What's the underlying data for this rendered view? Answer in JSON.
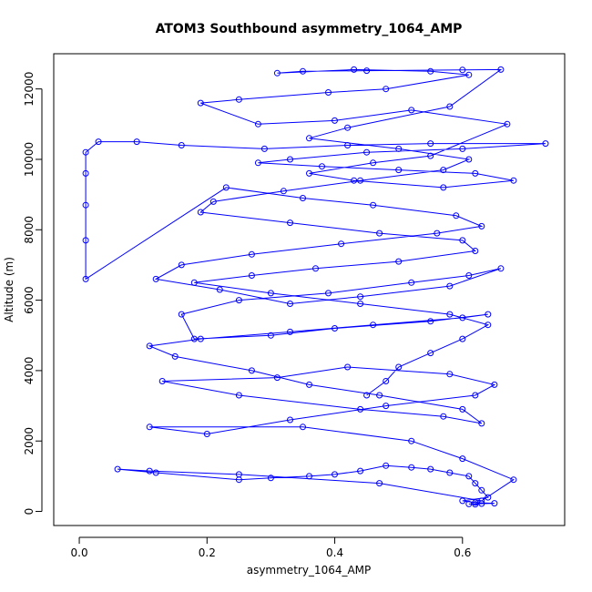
{
  "chart_data": {
    "type": "line",
    "title": "ATOM3 Southbound asymmetry_1064_AMP",
    "xlabel": "asymmetry_1064_AMP",
    "ylabel": "Altitude (m)",
    "xlim": [
      -0.04,
      0.76
    ],
    "ylim": [
      -400,
      13000
    ],
    "x_ticks": [
      "0.0",
      "0.2",
      "0.4",
      "0.6"
    ],
    "x_tick_values": [
      0,
      0.2,
      0.4,
      0.6
    ],
    "y_ticks": [
      "0",
      "2000",
      "4000",
      "6000",
      "8000",
      "10000",
      "12000"
    ],
    "y_tick_values": [
      0,
      2000,
      4000,
      6000,
      8000,
      10000,
      12000
    ],
    "grid": false,
    "series": [
      {
        "color": "#0000ff",
        "marker": "open-circle",
        "x": [
          0.62,
          0.63,
          0.61,
          0.65,
          0.62,
          0.6,
          0.64,
          0.63,
          0.62,
          0.61,
          0.58,
          0.55,
          0.52,
          0.48,
          0.44,
          0.4,
          0.36,
          0.3,
          0.25,
          0.12,
          0.06,
          0.11,
          0.25,
          0.47,
          0.63,
          0.68,
          0.6,
          0.52,
          0.35,
          0.11,
          0.2,
          0.33,
          0.48,
          0.62,
          0.65,
          0.58,
          0.42,
          0.31,
          0.13,
          0.25,
          0.44,
          0.57,
          0.63,
          0.6,
          0.47,
          0.36,
          0.27,
          0.15,
          0.11,
          0.19,
          0.33,
          0.46,
          0.6,
          0.64,
          0.55,
          0.4,
          0.3,
          0.18,
          0.16,
          0.25,
          0.39,
          0.52,
          0.61,
          0.66,
          0.58,
          0.44,
          0.33,
          0.22,
          0.12,
          0.16,
          0.27,
          0.41,
          0.56,
          0.63,
          0.59,
          0.46,
          0.35,
          0.23,
          0.01,
          0.01,
          0.01,
          0.01,
          0.01,
          0.03,
          0.09,
          0.16,
          0.29,
          0.42,
          0.55,
          0.73,
          0.6,
          0.45,
          0.33,
          0.28,
          0.38,
          0.5,
          0.62,
          0.68,
          0.57,
          0.43,
          0.36,
          0.46,
          0.55,
          0.67,
          0.52,
          0.4,
          0.28,
          0.19,
          0.25,
          0.39,
          0.48,
          0.61,
          0.55,
          0.43,
          0.31,
          0.35,
          0.45,
          0.6,
          0.66,
          0.58,
          0.42,
          0.36,
          0.5,
          0.61,
          0.57,
          0.44,
          0.32,
          0.21,
          0.19,
          0.33,
          0.47,
          0.6,
          0.62,
          0.5,
          0.37,
          0.27,
          0.18,
          0.3,
          0.44,
          0.58,
          0.64,
          0.6,
          0.55,
          0.5,
          0.48,
          0.45
        ],
        "y": [
          200,
          220,
          210,
          230,
          250,
          300,
          400,
          600,
          800,
          1000,
          1100,
          1200,
          1250,
          1300,
          1150,
          1050,
          1000,
          950,
          900,
          1100,
          1200,
          1150,
          1050,
          800,
          300,
          900,
          1500,
          2000,
          2400,
          2400,
          2200,
          2600,
          3000,
          3300,
          3600,
          3900,
          4100,
          3800,
          3700,
          3300,
          2900,
          2700,
          2500,
          2900,
          3300,
          3600,
          4000,
          4400,
          4700,
          4900,
          5100,
          5300,
          5500,
          5600,
          5400,
          5200,
          5000,
          4900,
          5600,
          6000,
          6200,
          6500,
          6700,
          6900,
          6400,
          6100,
          5900,
          6300,
          6600,
          7000,
          7300,
          7600,
          7900,
          8100,
          8400,
          8700,
          8900,
          9200,
          6600,
          7700,
          8700,
          9600,
          10200,
          10500,
          10500,
          10400,
          10300,
          10400,
          10450,
          10450,
          10300,
          10200,
          10000,
          9900,
          9800,
          9700,
          9600,
          9400,
          9200,
          9400,
          9600,
          9900,
          10100,
          11000,
          11400,
          11100,
          11000,
          11600,
          11700,
          11900,
          12000,
          12400,
          12500,
          12550,
          12450,
          12500,
          12520,
          12540,
          12550,
          11500,
          10900,
          10600,
          10300,
          10000,
          9700,
          9400,
          9100,
          8800,
          8500,
          8200,
          7900,
          7700,
          7400,
          7100,
          6900,
          6700,
          6500,
          6200,
          5900,
          5600,
          5300,
          4900,
          4500,
          4100,
          3700,
          3300
        ]
      }
    ]
  }
}
